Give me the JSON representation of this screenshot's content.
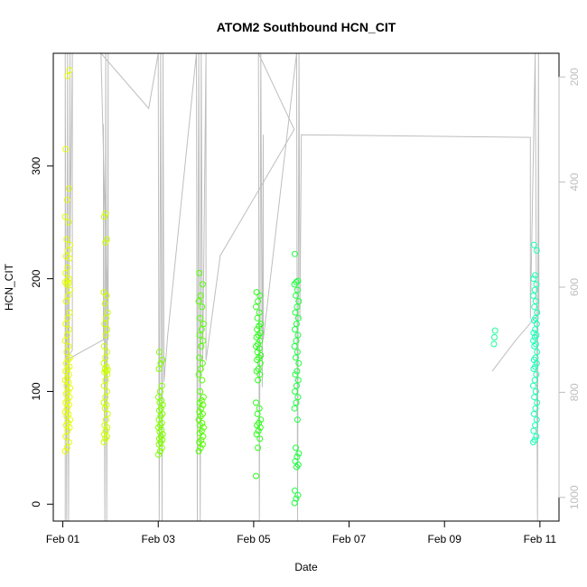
{
  "chart_data": {
    "type": "scatter",
    "title": "ATOM2 Southbound HCN_CIT",
    "xlabel": "Date",
    "ylabel": "HCN_CIT",
    "x_ticks": [
      "Feb 01",
      "Feb 03",
      "Feb 05",
      "Feb 07",
      "Feb 09",
      "Feb 11"
    ],
    "x_tick_days": [
      1,
      3,
      5,
      7,
      9,
      11
    ],
    "xlim_days": [
      0.8,
      11.4
    ],
    "ylim": [
      -15,
      400
    ],
    "y_ticks": [
      0,
      100,
      200,
      300
    ],
    "right_axis": {
      "ticks": [
        200,
        400,
        600,
        800,
        1000
      ],
      "lim": [
        1045,
        155
      ],
      "color": "#bebebe",
      "description": "secondary series drawn as grey line"
    },
    "grid": false,
    "point_groups": [
      {
        "x_center": 1.1,
        "x_spread": 0.1,
        "values": [
          47,
          50,
          55,
          60,
          65,
          68,
          70,
          72,
          75,
          78,
          80,
          82,
          85,
          88,
          90,
          92,
          95,
          98,
          100,
          103,
          105,
          108,
          110,
          112,
          115,
          118,
          120,
          122,
          125,
          128,
          130,
          135,
          140,
          145,
          150,
          155,
          160,
          165,
          170,
          180,
          185,
          190,
          195,
          196,
          197,
          198,
          200,
          205,
          210,
          218,
          220,
          225,
          230,
          235,
          250,
          255,
          270,
          280,
          315,
          380,
          385
        ],
        "color": "#e6ff00"
      },
      {
        "x_center": 1.9,
        "x_spread": 0.08,
        "values": [
          55,
          58,
          60,
          62,
          65,
          68,
          70,
          75,
          80,
          85,
          88,
          90,
          95,
          100,
          105,
          110,
          115,
          117,
          118,
          119,
          120,
          122,
          125,
          130,
          135,
          140,
          150,
          155,
          160,
          165,
          170,
          178,
          185,
          188,
          232,
          235,
          255,
          258
        ],
        "color": "#ccff00"
      },
      {
        "x_center": 3.05,
        "x_spread": 0.09,
        "values": [
          44,
          47,
          50,
          53,
          55,
          57,
          58,
          60,
          62,
          64,
          66,
          68,
          70,
          72,
          75,
          78,
          80,
          83,
          85,
          88,
          90,
          92,
          95,
          100,
          105,
          120,
          125,
          128,
          135
        ],
        "color": "#80ff00"
      },
      {
        "x_center": 3.9,
        "x_spread": 0.1,
        "values": [
          47,
          50,
          53,
          55,
          57,
          60,
          63,
          65,
          68,
          70,
          72,
          75,
          78,
          80,
          82,
          85,
          88,
          90,
          92,
          95,
          100,
          110,
          115,
          120,
          125,
          130,
          140,
          145,
          150,
          155,
          160,
          165,
          175,
          180,
          185,
          195,
          205
        ],
        "color": "#55ff00"
      },
      {
        "x_center": 5.1,
        "x_spread": 0.1,
        "values": [
          25,
          50,
          58,
          62,
          65,
          68,
          70,
          72,
          75,
          80,
          85,
          90,
          110,
          115,
          118,
          120,
          125,
          128,
          130,
          132,
          135,
          138,
          140,
          142,
          145,
          148,
          150,
          152,
          155,
          158,
          160,
          165,
          170,
          175,
          180,
          185,
          188
        ],
        "color": "#2cff19"
      },
      {
        "x_center": 5.9,
        "x_spread": 0.09,
        "values": [
          1,
          5,
          8,
          12,
          33,
          35,
          38,
          42,
          45,
          50,
          75,
          85,
          90,
          95,
          100,
          105,
          110,
          115,
          118,
          125,
          130,
          135,
          140,
          145,
          150,
          155,
          160,
          165,
          170,
          175,
          180,
          185,
          190,
          195,
          197,
          198,
          222
        ],
        "color": "#1aff3c"
      },
      {
        "x_center": 10.05,
        "x_spread": 0.03,
        "values": [
          142,
          148,
          154
        ],
        "color": "#19ff96"
      },
      {
        "x_center": 10.9,
        "x_spread": 0.08,
        "values": [
          55,
          57,
          60,
          65,
          70,
          75,
          80,
          85,
          90,
          95,
          100,
          105,
          110,
          115,
          120,
          122,
          125,
          128,
          130,
          135,
          140,
          142,
          145,
          148,
          150,
          152,
          155,
          160,
          163,
          165,
          170,
          175,
          180,
          185,
          190,
          195,
          200,
          203,
          225,
          230
        ],
        "color": "#19ffb4"
      }
    ],
    "secondary_line": [
      [
        1.05,
        1045
      ],
      [
        1.05,
        155
      ],
      [
        1.08,
        1045
      ],
      [
        1.1,
        155
      ],
      [
        1.12,
        1045
      ],
      [
        1.15,
        155
      ],
      [
        1.15,
        520
      ],
      [
        1.2,
        155
      ],
      [
        1.2,
        720
      ],
      [
        1.05,
        740
      ],
      [
        1.85,
        700
      ],
      [
        1.85,
        290
      ],
      [
        1.88,
        1045
      ],
      [
        1.9,
        155
      ],
      [
        1.92,
        1045
      ],
      [
        1.95,
        155
      ],
      [
        1.95,
        700
      ],
      [
        1.8,
        155
      ],
      [
        2.8,
        260
      ],
      [
        3.0,
        155
      ],
      [
        3.02,
        1045
      ],
      [
        3.05,
        155
      ],
      [
        3.08,
        1045
      ],
      [
        3.1,
        155
      ],
      [
        3.12,
        780
      ],
      [
        3.2,
        690
      ],
      [
        3.8,
        155
      ],
      [
        3.82,
        1045
      ],
      [
        3.85,
        155
      ],
      [
        3.88,
        1045
      ],
      [
        3.9,
        155
      ],
      [
        3.93,
        760
      ],
      [
        4.0,
        155
      ],
      [
        4.0,
        740
      ],
      [
        4.3,
        540
      ],
      [
        5.85,
        300
      ],
      [
        5.1,
        155
      ],
      [
        5.12,
        1045
      ],
      [
        5.15,
        155
      ],
      [
        5.18,
        790
      ],
      [
        5.2,
        310
      ],
      [
        5.2,
        700
      ],
      [
        5.9,
        155
      ],
      [
        5.92,
        1045
      ],
      [
        5.95,
        155
      ],
      [
        5.97,
        660
      ],
      [
        6.0,
        310
      ],
      [
        10.8,
        315
      ],
      [
        10.8,
        660
      ],
      [
        10.9,
        155
      ],
      [
        10.95,
        1045
      ],
      [
        10.97,
        155
      ],
      [
        10.98,
        650
      ],
      [
        10.5,
        700
      ],
      [
        10.0,
        760
      ]
    ]
  }
}
